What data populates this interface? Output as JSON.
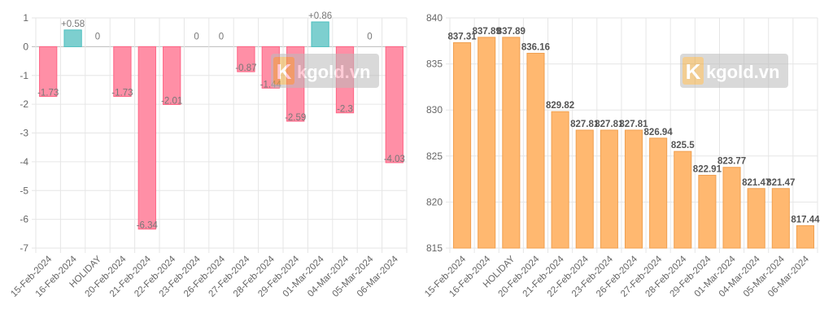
{
  "watermark": "kgold.vn",
  "chart_data": [
    {
      "type": "bar",
      "title": "",
      "categories": [
        "15-Feb-2024",
        "16-Feb-2024",
        "HOLIDAY",
        "20-Feb-2024",
        "21-Feb-2024",
        "22-Feb-2024",
        "23-Feb-2024",
        "26-Feb-2024",
        "27-Feb-2024",
        "28-Feb-2024",
        "29-Feb-2024",
        "01-Mar-2024",
        "04-Mar-2024",
        "05-Mar-2024",
        "06-Mar-2024"
      ],
      "values": [
        -1.73,
        0.58,
        0,
        -1.73,
        -6.34,
        -2.01,
        0,
        0,
        -0.87,
        -1.44,
        -2.59,
        0.86,
        -2.3,
        0,
        -4.03
      ],
      "labels": [
        "-1.73",
        "+0.58",
        "0",
        "-1.73",
        "-6.34",
        "-2.01",
        "0",
        "0",
        "-0.87",
        "-1.44",
        "-2.59",
        "+0.86",
        "-2.3",
        "0",
        "-4.03"
      ],
      "ylim": [
        -7,
        1
      ],
      "yticks": [
        "1",
        "0",
        "-1",
        "-2",
        "-3",
        "-4",
        "-5",
        "-6",
        "-7"
      ],
      "grid": true,
      "colors": {
        "positive": "#7dcfcf",
        "negative": "#ff8fa6",
        "positive_border": "#4bc0c0",
        "negative_border": "#ff6384"
      }
    },
    {
      "type": "bar",
      "title": "",
      "categories": [
        "15-Feb-2024",
        "16-Feb-2024",
        "HOLIDAY",
        "20-Feb-2024",
        "21-Feb-2024",
        "22-Feb-2024",
        "23-Feb-2024",
        "26-Feb-2024",
        "27-Feb-2024",
        "28-Feb-2024",
        "29-Feb-2024",
        "01-Mar-2024",
        "04-Mar-2024",
        "05-Mar-2024",
        "06-Mar-2024"
      ],
      "values": [
        837.31,
        837.89,
        837.89,
        836.16,
        829.82,
        827.81,
        827.81,
        827.81,
        826.94,
        825.5,
        822.91,
        823.77,
        821.47,
        821.47,
        817.44
      ],
      "labels": [
        "837.31",
        "837.89",
        "837.89",
        "836.16",
        "829.82",
        "827.81",
        "827.81",
        "827.81",
        "826.94",
        "825.5",
        "822.91",
        "823.77",
        "821.47",
        "821.47",
        "817.44"
      ],
      "ylim": [
        815,
        840
      ],
      "yticks": [
        "840",
        "835",
        "830",
        "825",
        "820",
        "815"
      ],
      "grid": true,
      "colors": {
        "bar": "#ffb870",
        "border": "#f0a050"
      }
    }
  ]
}
